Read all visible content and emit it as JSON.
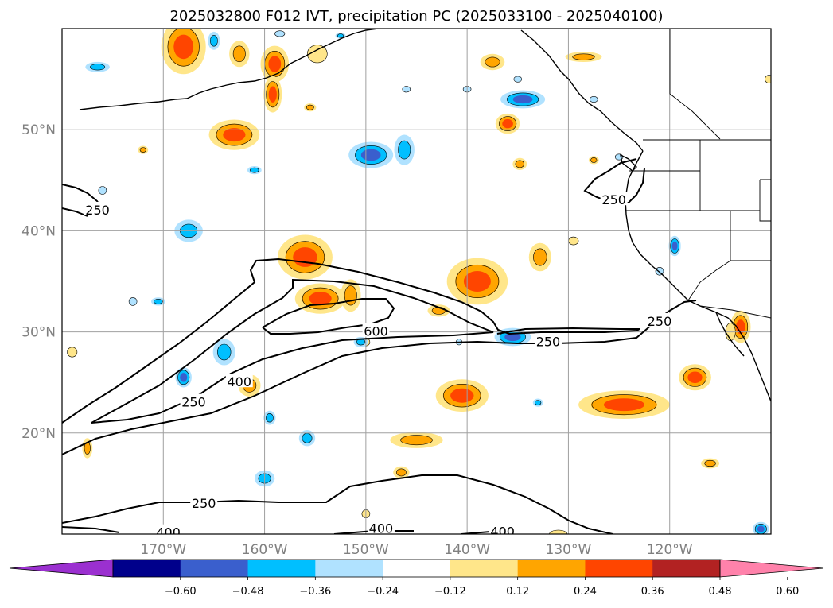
{
  "chart_data": {
    "type": "heatmap",
    "title": "2025032800 F012 IVT, precipitation PC (2025033100 - 2025040100)",
    "map": {
      "lon_range": [
        -180,
        -110
      ],
      "lat_range": [
        10,
        60
      ],
      "gridlines": true,
      "lon_ticks": [
        {
          "value": -170,
          "label": "170°W"
        },
        {
          "value": -160,
          "label": "160°W"
        },
        {
          "value": -150,
          "label": "150°W"
        },
        {
          "value": -140,
          "label": "140°W"
        },
        {
          "value": -130,
          "label": "130°W"
        },
        {
          "value": -120,
          "label": "120°W"
        }
      ],
      "lat_ticks": [
        {
          "value": 20,
          "label": "20°N"
        },
        {
          "value": 30,
          "label": "30°N"
        },
        {
          "value": 40,
          "label": "40°N"
        },
        {
          "value": 50,
          "label": "50°N"
        }
      ]
    },
    "colorbar": {
      "orientation": "horizontal",
      "extend": "both",
      "levels": [
        -0.72,
        -0.6,
        -0.48,
        -0.36,
        -0.24,
        -0.12,
        0.12,
        0.24,
        0.36,
        0.48,
        0.6,
        0.72
      ],
      "tick_values": [
        -0.6,
        -0.48,
        -0.36,
        -0.24,
        -0.12,
        0.12,
        0.24,
        0.36,
        0.48,
        0.6
      ],
      "tick_labels": [
        "−0.60",
        "−0.48",
        "−0.36",
        "−0.24",
        "−0.12",
        "0.12",
        "0.24",
        "0.36",
        "0.48",
        "0.60"
      ],
      "colors": [
        "#9b30d0",
        "#00008b",
        "#3a5fcd",
        "#00bfff",
        "#b0e2ff",
        "#ffffff",
        "#ffe68a",
        "#ffa500",
        "#ff4500",
        "#b22222",
        "#ff82ab"
      ]
    },
    "ivt_contour_labels": [
      {
        "text": "250",
        "lon": -176.5,
        "lat": 42
      },
      {
        "text": "250",
        "lon": -125.5,
        "lat": 43
      },
      {
        "text": "250",
        "lon": -121,
        "lat": 31
      },
      {
        "text": "250",
        "lon": -132,
        "lat": 29
      },
      {
        "text": "600",
        "lon": -149,
        "lat": 30
      },
      {
        "text": "400",
        "lon": -162.5,
        "lat": 25
      },
      {
        "text": "250",
        "lon": -167,
        "lat": 23
      },
      {
        "text": "250",
        "lon": -166,
        "lat": 13
      },
      {
        "text": "400",
        "lon": -169.5,
        "lat": 10.1
      },
      {
        "text": "400",
        "lon": -148.5,
        "lat": 10.5
      },
      {
        "text": "400",
        "lon": -136.5,
        "lat": 10.2
      }
    ],
    "precip_pc_blobs": [
      {
        "lon": -168,
        "lat": 58.2,
        "rx": 2.2,
        "ry": 2.7,
        "value": 0.45
      },
      {
        "lon": -162.5,
        "lat": 57.5,
        "rx": 1.0,
        "ry": 1.3,
        "value": 0.3
      },
      {
        "lon": -159,
        "lat": 56.5,
        "rx": 1.4,
        "ry": 1.8,
        "value": 0.36
      },
      {
        "lon": -159.2,
        "lat": 53.5,
        "rx": 0.9,
        "ry": 1.8,
        "value": 0.36
      },
      {
        "lon": -163,
        "lat": 49.5,
        "rx": 2.5,
        "ry": 1.5,
        "value": 0.36
      },
      {
        "lon": -136,
        "lat": 50.6,
        "rx": 1.2,
        "ry": 1.0,
        "value": 0.36
      },
      {
        "lon": -137.5,
        "lat": 56.7,
        "rx": 1.2,
        "ry": 0.8,
        "value": 0.3
      },
      {
        "lon": -128.5,
        "lat": 57.2,
        "rx": 1.8,
        "ry": 0.5,
        "value": 0.3
      },
      {
        "lon": -156,
        "lat": 37.4,
        "rx": 2.7,
        "ry": 2.2,
        "value": 0.4
      },
      {
        "lon": -154.5,
        "lat": 33.3,
        "rx": 2.5,
        "ry": 1.5,
        "value": 0.36
      },
      {
        "lon": -151.5,
        "lat": 33.6,
        "rx": 1.0,
        "ry": 1.6,
        "value": 0.3
      },
      {
        "lon": -139,
        "lat": 35.0,
        "rx": 3.0,
        "ry": 2.3,
        "value": 0.4
      },
      {
        "lon": -132.8,
        "lat": 37.4,
        "rx": 1.1,
        "ry": 1.4,
        "value": 0.3
      },
      {
        "lon": -142.8,
        "lat": 32.1,
        "rx": 1.1,
        "ry": 0.6,
        "value": 0.3
      },
      {
        "lon": -140.5,
        "lat": 23.7,
        "rx": 2.6,
        "ry": 1.6,
        "value": 0.36
      },
      {
        "lon": -124.5,
        "lat": 22.8,
        "rx": 4.5,
        "ry": 1.4,
        "value": 0.36
      },
      {
        "lon": -117.5,
        "lat": 25.5,
        "rx": 1.6,
        "ry": 1.3,
        "value": 0.4
      },
      {
        "lon": -113,
        "lat": 30.5,
        "rx": 1.0,
        "ry": 1.6,
        "value": 0.4
      },
      {
        "lon": -145,
        "lat": 19.3,
        "rx": 2.6,
        "ry": 0.8,
        "value": 0.3
      },
      {
        "lon": -161.5,
        "lat": 24.7,
        "rx": 1.1,
        "ry": 1.1,
        "value": 0.3
      },
      {
        "lon": -146.5,
        "lat": 16.1,
        "rx": 0.8,
        "ry": 0.6,
        "value": 0.24
      },
      {
        "lon": -154.8,
        "lat": 57.5,
        "rx": 1.0,
        "ry": 0.9,
        "value": 0.2
      },
      {
        "lon": -155.5,
        "lat": 52.2,
        "rx": 0.6,
        "ry": 0.4,
        "value": 0.24
      },
      {
        "lon": -172,
        "lat": 48.0,
        "rx": 0.5,
        "ry": 0.4,
        "value": 0.24
      },
      {
        "lon": -177.5,
        "lat": 18.5,
        "rx": 0.5,
        "ry": 1.0,
        "value": 0.24
      },
      {
        "lon": -179,
        "lat": 28.0,
        "rx": 0.5,
        "ry": 0.5,
        "value": 0.2
      },
      {
        "lon": -150,
        "lat": 29.0,
        "rx": 0.4,
        "ry": 0.4,
        "value": 0.2
      },
      {
        "lon": -150,
        "lat": 12.0,
        "rx": 0.4,
        "ry": 0.4,
        "value": 0.2
      },
      {
        "lon": -129.5,
        "lat": 39.0,
        "rx": 0.5,
        "ry": 0.4,
        "value": 0.2
      },
      {
        "lon": -134.8,
        "lat": 46.6,
        "rx": 0.7,
        "ry": 0.6,
        "value": 0.24
      },
      {
        "lon": -116,
        "lat": 17.0,
        "rx": 0.9,
        "ry": 0.5,
        "value": 0.24
      },
      {
        "lon": -127.5,
        "lat": 47.0,
        "rx": 0.5,
        "ry": 0.4,
        "value": 0.24
      },
      {
        "lon": -110.2,
        "lat": 55.0,
        "rx": 0.4,
        "ry": 0.4,
        "value": 0.2
      },
      {
        "lon": -131,
        "lat": 10.0,
        "rx": 0.9,
        "ry": 0.4,
        "value": 0.2
      },
      {
        "lon": -114,
        "lat": 30.0,
        "rx": 0.5,
        "ry": 0.9,
        "value": 0.2
      },
      {
        "lon": -167.5,
        "lat": 40.0,
        "rx": 1.4,
        "ry": 1.1,
        "value": -0.3
      },
      {
        "lon": -164.0,
        "lat": 28.0,
        "rx": 1.1,
        "ry": 1.3,
        "value": -0.3
      },
      {
        "lon": -168.0,
        "lat": 25.5,
        "rx": 0.8,
        "ry": 1.0,
        "value": -0.36
      },
      {
        "lon": -159.5,
        "lat": 21.5,
        "rx": 0.6,
        "ry": 0.7,
        "value": -0.24
      },
      {
        "lon": -155.8,
        "lat": 19.5,
        "rx": 0.8,
        "ry": 0.8,
        "value": -0.3
      },
      {
        "lon": -160.0,
        "lat": 15.5,
        "rx": 1.0,
        "ry": 0.8,
        "value": -0.3
      },
      {
        "lon": -170.5,
        "lat": 33.0,
        "rx": 0.7,
        "ry": 0.4,
        "value": -0.24
      },
      {
        "lon": -173.0,
        "lat": 33.0,
        "rx": 0.4,
        "ry": 0.4,
        "value": -0.2
      },
      {
        "lon": -176.0,
        "lat": 44.0,
        "rx": 0.4,
        "ry": 0.4,
        "value": -0.2
      },
      {
        "lon": -176.5,
        "lat": 56.2,
        "rx": 1.2,
        "ry": 0.5,
        "value": -0.24
      },
      {
        "lon": -165.0,
        "lat": 58.8,
        "rx": 0.6,
        "ry": 0.9,
        "value": -0.3
      },
      {
        "lon": -161.0,
        "lat": 46.0,
        "rx": 0.7,
        "ry": 0.4,
        "value": -0.24
      },
      {
        "lon": -158.5,
        "lat": 59.5,
        "rx": 0.5,
        "ry": 0.3,
        "value": -0.2
      },
      {
        "lon": -149.5,
        "lat": 47.5,
        "rx": 2.2,
        "ry": 1.3,
        "value": -0.36
      },
      {
        "lon": -146.2,
        "lat": 48.0,
        "rx": 1.0,
        "ry": 1.5,
        "value": -0.3
      },
      {
        "lon": -134.5,
        "lat": 53.0,
        "rx": 2.2,
        "ry": 0.9,
        "value": -0.36
      },
      {
        "lon": -135.5,
        "lat": 29.5,
        "rx": 1.8,
        "ry": 0.9,
        "value": -0.36
      },
      {
        "lon": -150.5,
        "lat": 29.0,
        "rx": 0.7,
        "ry": 0.5,
        "value": -0.24
      },
      {
        "lon": -119.5,
        "lat": 38.5,
        "rx": 0.6,
        "ry": 1.0,
        "value": -0.36
      },
      {
        "lon": -111.0,
        "lat": 10.5,
        "rx": 0.8,
        "ry": 0.7,
        "value": -0.36
      },
      {
        "lon": -146.0,
        "lat": 54.0,
        "rx": 0.4,
        "ry": 0.3,
        "value": -0.2
      },
      {
        "lon": -140.0,
        "lat": 54.0,
        "rx": 0.4,
        "ry": 0.3,
        "value": -0.2
      },
      {
        "lon": -135.0,
        "lat": 55.0,
        "rx": 0.4,
        "ry": 0.3,
        "value": -0.2
      },
      {
        "lon": -133.0,
        "lat": 23.0,
        "rx": 0.5,
        "ry": 0.4,
        "value": -0.24
      },
      {
        "lon": -140.8,
        "lat": 29.0,
        "rx": 0.3,
        "ry": 0.3,
        "value": -0.2
      },
      {
        "lon": -152.5,
        "lat": 59.3,
        "rx": 0.5,
        "ry": 0.3,
        "value": -0.24
      },
      {
        "lon": -121.0,
        "lat": 36.0,
        "rx": 0.4,
        "ry": 0.4,
        "value": -0.2
      },
      {
        "lon": -127.5,
        "lat": 53.0,
        "rx": 0.4,
        "ry": 0.3,
        "value": -0.2
      },
      {
        "lon": -125.0,
        "lat": 47.3,
        "rx": 0.4,
        "ry": 0.3,
        "value": -0.2
      }
    ]
  }
}
